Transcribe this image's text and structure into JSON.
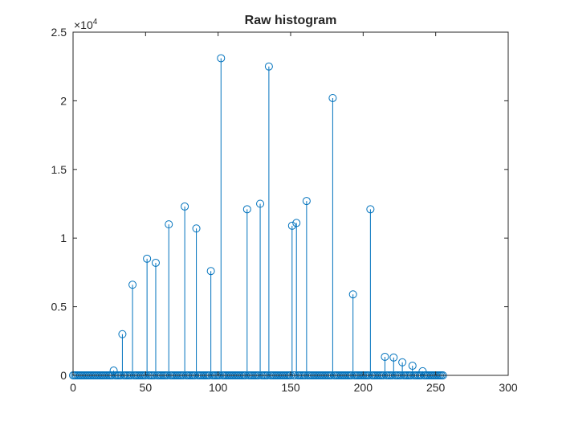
{
  "chart_data": {
    "type": "stem",
    "title": "Raw histogram",
    "xlabel": "",
    "ylabel": "",
    "xlim": [
      0,
      300
    ],
    "ylim": [
      0,
      25000
    ],
    "xticks": [
      0,
      50,
      100,
      150,
      200,
      250,
      300
    ],
    "xtick_labels": [
      "0",
      "50",
      "100",
      "150",
      "200",
      "250",
      "300"
    ],
    "yticks": [
      0,
      5000,
      10000,
      15000,
      20000,
      25000
    ],
    "ytick_labels": [
      "0",
      "0.5",
      "1",
      "1.5",
      "2",
      "2.5"
    ],
    "y_exponent_label": "×10",
    "y_exponent_power": "4",
    "grid": false,
    "series_color": "#0072BD",
    "x_range": [
      0,
      255
    ],
    "baseline_value": 0,
    "nonzero_points": [
      {
        "x": 28,
        "y": 350
      },
      {
        "x": 34,
        "y": 3000
      },
      {
        "x": 41,
        "y": 6600
      },
      {
        "x": 51,
        "y": 8500
      },
      {
        "x": 57,
        "y": 8200
      },
      {
        "x": 66,
        "y": 11000
      },
      {
        "x": 77,
        "y": 12300
      },
      {
        "x": 85,
        "y": 10700
      },
      {
        "x": 95,
        "y": 7600
      },
      {
        "x": 102,
        "y": 23100
      },
      {
        "x": 120,
        "y": 12100
      },
      {
        "x": 129,
        "y": 12500
      },
      {
        "x": 135,
        "y": 22500
      },
      {
        "x": 151,
        "y": 10900
      },
      {
        "x": 154,
        "y": 11100
      },
      {
        "x": 161,
        "y": 12700
      },
      {
        "x": 179,
        "y": 20200
      },
      {
        "x": 193,
        "y": 5900
      },
      {
        "x": 205,
        "y": 12100
      },
      {
        "x": 215,
        "y": 1350
      },
      {
        "x": 221,
        "y": 1300
      },
      {
        "x": 227,
        "y": 950
      },
      {
        "x": 234,
        "y": 700
      },
      {
        "x": 241,
        "y": 300
      }
    ]
  }
}
